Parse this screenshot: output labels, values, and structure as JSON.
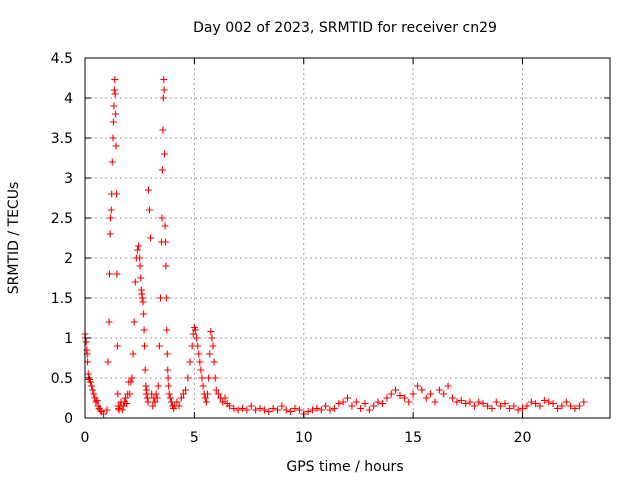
{
  "chart_data": {
    "type": "scatter",
    "title": "Day 002 of 2023, SRMTID for receiver cn29",
    "xlabel": "GPS time / hours",
    "ylabel": "SRMTID / TECUs",
    "xlim": [
      0,
      24
    ],
    "ylim": [
      0,
      4.5
    ],
    "x_ticks": [
      0,
      5,
      10,
      15,
      20
    ],
    "x_tick_labels": [
      "0",
      "5",
      "10",
      "15",
      "20"
    ],
    "y_ticks": [
      0,
      0.5,
      1,
      1.5,
      2,
      2.5,
      3,
      3.5,
      4,
      4.5
    ],
    "y_tick_labels": [
      "0",
      "0.5",
      "1",
      "1.5",
      "2",
      "2.5",
      "3",
      "3.5",
      "4",
      "4.5"
    ],
    "grid": true,
    "marker": "+",
    "series": [
      {
        "name": "SRMTID",
        "color": "#ff0000",
        "x": [
          0.0,
          0.02,
          0.05,
          0.08,
          0.1,
          0.12,
          0.15,
          0.18,
          0.2,
          0.25,
          0.3,
          0.35,
          0.4,
          0.45,
          0.5,
          0.55,
          0.6,
          0.65,
          0.7,
          0.75,
          0.85,
          1.0,
          1.05,
          1.1,
          1.12,
          1.15,
          1.17,
          1.2,
          1.22,
          1.25,
          1.28,
          1.3,
          1.32,
          1.34,
          1.36,
          1.38,
          1.4,
          1.42,
          1.44,
          1.46,
          1.48,
          1.5,
          1.52,
          1.54,
          1.56,
          1.6,
          1.65,
          1.7,
          1.75,
          1.8,
          1.85,
          1.9,
          1.95,
          2.0,
          2.05,
          2.1,
          2.15,
          2.2,
          2.25,
          2.3,
          2.35,
          2.4,
          2.45,
          2.5,
          2.52,
          2.55,
          2.58,
          2.6,
          2.62,
          2.65,
          2.68,
          2.7,
          2.72,
          2.75,
          2.78,
          2.8,
          2.82,
          2.85,
          2.88,
          2.9,
          2.95,
          3.0,
          3.05,
          3.1,
          3.15,
          3.2,
          3.25,
          3.3,
          3.35,
          3.4,
          3.45,
          3.5,
          3.52,
          3.54,
          3.56,
          3.58,
          3.6,
          3.62,
          3.64,
          3.66,
          3.68,
          3.7,
          3.72,
          3.74,
          3.76,
          3.78,
          3.8,
          3.82,
          3.85,
          3.9,
          3.95,
          4.0,
          4.05,
          4.1,
          4.2,
          4.3,
          4.4,
          4.5,
          4.6,
          4.7,
          4.8,
          4.9,
          4.95,
          5.0,
          5.05,
          5.1,
          5.15,
          5.2,
          5.25,
          5.3,
          5.35,
          5.4,
          5.45,
          5.5,
          5.55,
          5.6,
          5.65,
          5.7,
          5.75,
          5.8,
          5.85,
          5.9,
          5.95,
          6.0,
          6.1,
          6.2,
          6.3,
          6.4,
          6.5,
          6.6,
          6.8,
          7.0,
          7.2,
          7.4,
          7.6,
          7.8,
          8.0,
          8.2,
          8.4,
          8.6,
          8.8,
          9.0,
          9.2,
          9.4,
          9.6,
          9.8,
          10.0,
          10.2,
          10.4,
          10.6,
          10.8,
          11.0,
          11.2,
          11.4,
          11.6,
          11.8,
          12.0,
          12.2,
          12.4,
          12.6,
          12.8,
          13.0,
          13.2,
          13.4,
          13.6,
          13.8,
          14.0,
          14.2,
          14.4,
          14.6,
          14.8,
          15.0,
          15.2,
          15.4,
          15.6,
          15.8,
          16.0,
          16.2,
          16.4,
          16.6,
          16.8,
          17.0,
          17.2,
          17.4,
          17.6,
          17.8,
          18.0,
          18.2,
          18.4,
          18.6,
          18.8,
          19.0,
          19.2,
          19.4,
          19.6,
          19.8,
          20.0,
          20.2,
          20.4,
          20.6,
          20.8,
          21.0,
          21.2,
          21.4,
          21.6,
          21.8,
          22.0,
          22.2,
          22.4,
          22.6,
          22.8
        ],
        "y": [
          1.05,
          1.0,
          0.95,
          0.85,
          0.8,
          0.7,
          0.55,
          0.5,
          0.48,
          0.45,
          0.4,
          0.35,
          0.3,
          0.25,
          0.2,
          0.22,
          0.15,
          0.12,
          0.1,
          0.08,
          0.05,
          0.1,
          0.7,
          1.2,
          1.8,
          2.3,
          2.5,
          2.6,
          2.8,
          3.2,
          3.5,
          3.7,
          3.9,
          4.1,
          4.23,
          4.05,
          3.8,
          3.4,
          2.8,
          1.8,
          0.9,
          0.3,
          0.15,
          0.12,
          0.1,
          0.15,
          0.2,
          0.1,
          0.15,
          0.2,
          0.25,
          0.18,
          0.3,
          0.45,
          0.3,
          0.45,
          0.5,
          0.8,
          1.2,
          1.7,
          2.0,
          2.1,
          2.15,
          2.0,
          1.9,
          1.75,
          1.6,
          1.55,
          1.5,
          1.45,
          1.3,
          1.1,
          0.9,
          0.6,
          0.4,
          0.3,
          0.35,
          0.25,
          0.2,
          2.85,
          2.6,
          2.25,
          0.3,
          0.15,
          0.25,
          0.2,
          0.3,
          0.25,
          0.4,
          0.9,
          1.5,
          2.2,
          2.5,
          3.1,
          3.6,
          4.0,
          4.23,
          4.1,
          3.3,
          2.4,
          2.2,
          1.9,
          1.5,
          1.1,
          0.8,
          0.6,
          0.5,
          0.4,
          0.3,
          0.25,
          0.2,
          0.15,
          0.12,
          0.15,
          0.2,
          0.15,
          0.25,
          0.3,
          0.35,
          0.5,
          0.7,
          0.9,
          1.05,
          1.13,
          1.1,
          1.0,
          0.9,
          0.8,
          0.7,
          0.6,
          0.5,
          0.4,
          0.3,
          0.25,
          0.2,
          0.3,
          0.5,
          0.8,
          1.08,
          1.0,
          0.9,
          0.7,
          0.5,
          0.35,
          0.3,
          0.25,
          0.2,
          0.25,
          0.18,
          0.15,
          0.12,
          0.1,
          0.12,
          0.1,
          0.15,
          0.1,
          0.12,
          0.1,
          0.08,
          0.12,
          0.1,
          0.15,
          0.1,
          0.08,
          0.12,
          0.1,
          0.05,
          0.08,
          0.1,
          0.12,
          0.1,
          0.15,
          0.1,
          0.12,
          0.18,
          0.2,
          0.25,
          0.15,
          0.2,
          0.12,
          0.18,
          0.1,
          0.15,
          0.2,
          0.18,
          0.25,
          0.3,
          0.35,
          0.28,
          0.25,
          0.2,
          0.3,
          0.4,
          0.35,
          0.25,
          0.3,
          0.2,
          0.35,
          0.3,
          0.4,
          0.25,
          0.2,
          0.22,
          0.18,
          0.2,
          0.15,
          0.2,
          0.18,
          0.15,
          0.12,
          0.2,
          0.15,
          0.18,
          0.12,
          0.15,
          0.1,
          0.12,
          0.15,
          0.2,
          0.18,
          0.15,
          0.22,
          0.2,
          0.18,
          0.12,
          0.15,
          0.2,
          0.15,
          0.12,
          0.15,
          0.2
        ]
      }
    ]
  }
}
